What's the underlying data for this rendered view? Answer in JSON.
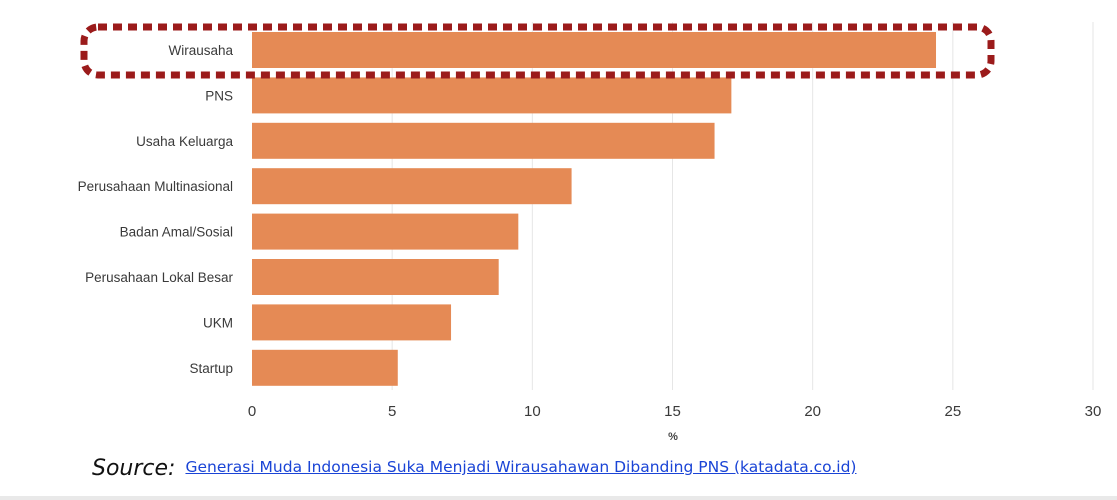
{
  "chart_data": {
    "type": "bar",
    "orientation": "horizontal",
    "categories": [
      "Wirausaha",
      "PNS",
      "Usaha Keluarga",
      "Perusahaan Multinasional",
      "Badan Amal/Sosial",
      "Perusahaan Lokal Besar",
      "UKM",
      "Startup"
    ],
    "values": [
      24.4,
      17.1,
      16.5,
      11.4,
      9.5,
      8.8,
      7.1,
      5.2
    ],
    "xlabel": "%",
    "xlim": [
      0,
      30
    ],
    "xticks": [
      "0",
      "5",
      "10",
      "15",
      "20",
      "25",
      "30"
    ],
    "grid": "vertical",
    "highlighted_category": "Wirausaha"
  },
  "colors": {
    "bar": "#e58a55",
    "gridline": "#e6e6e6",
    "highlight_border": "#9b1b1b",
    "link": "#1a44d6"
  },
  "source": {
    "label": "Source:",
    "link_text": "Generasi Muda Indonesia Suka Menjadi Wirausahawan Dibanding PNS (katadata.co.id)"
  }
}
